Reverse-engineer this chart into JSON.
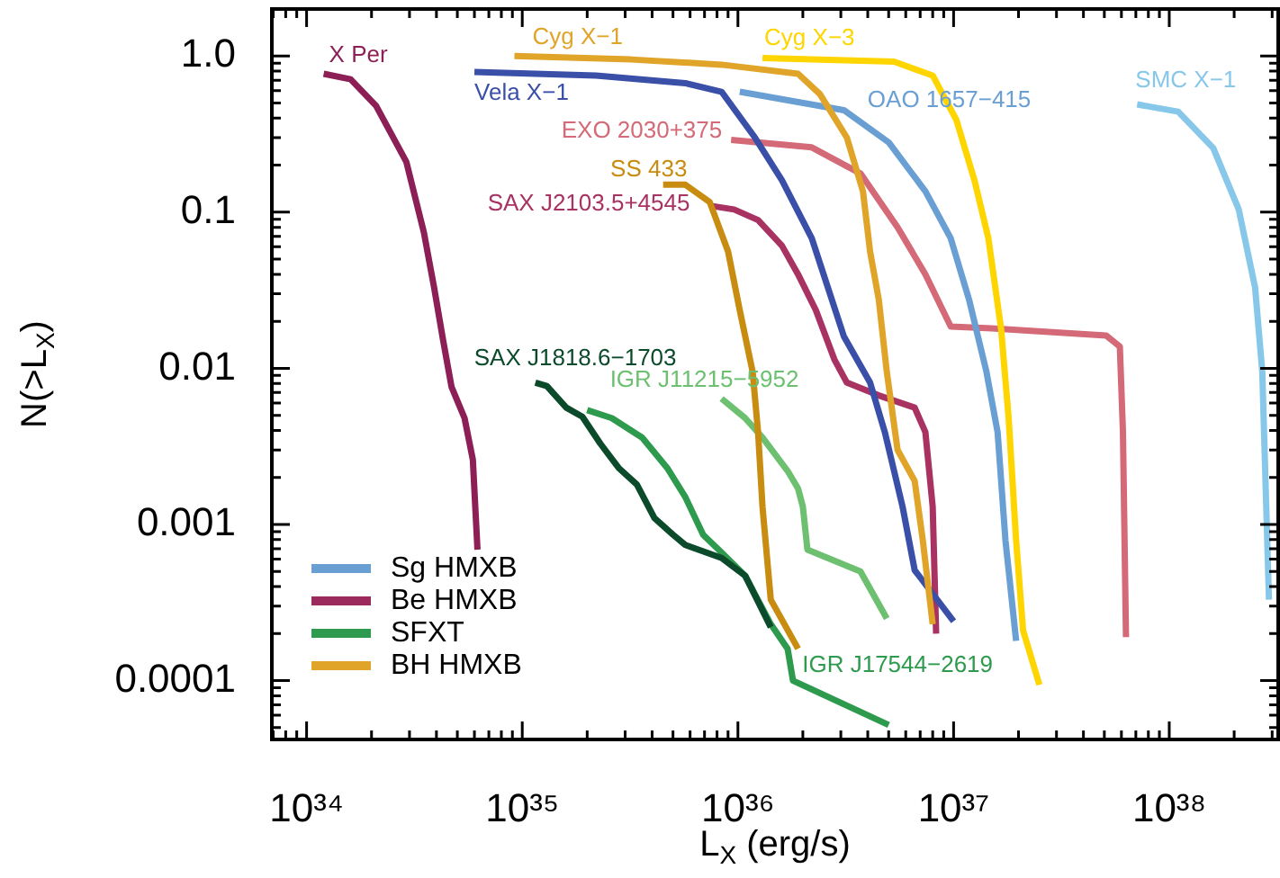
{
  "chart_data": {
    "type": "line",
    "xlabel": "L$_{X}$ (erg/s)",
    "ylabel": "N(>L$_{X}$)",
    "log": "xy",
    "legend": "bottom left",
    "xlim": [
      6.9e+33,
      3.2e+38
    ],
    "ylim": [
      4.2e-05,
      2.0
    ],
    "xticks": [
      {
        "value": 7e+33,
        "label": null
      },
      {
        "value": 8e+33,
        "label": null
      },
      {
        "value": 9e+33,
        "label": null
      },
      {
        "value": 1e+34,
        "label": "10³⁴"
      },
      {
        "value": 2e+34,
        "label": null
      },
      {
        "value": 3e+34,
        "label": null
      },
      {
        "value": 4e+34,
        "label": null
      },
      {
        "value": 5e+34,
        "label": null
      },
      {
        "value": 6e+34,
        "label": null
      },
      {
        "value": 7e+34,
        "label": null
      },
      {
        "value": 8e+34,
        "label": null
      },
      {
        "value": 9e+34,
        "label": null
      },
      {
        "value": 1e+35,
        "label": "10³⁵"
      },
      {
        "value": 2e+35,
        "label": null
      },
      {
        "value": 3e+35,
        "label": null
      },
      {
        "value": 4e+35,
        "label": null
      },
      {
        "value": 5e+35,
        "label": null
      },
      {
        "value": 6e+35,
        "label": null
      },
      {
        "value": 7e+35,
        "label": null
      },
      {
        "value": 8e+35,
        "label": null
      },
      {
        "value": 9e+35,
        "label": null
      },
      {
        "value": 1e+36,
        "label": "10³⁶"
      },
      {
        "value": 2e+36,
        "label": null
      },
      {
        "value": 3e+36,
        "label": null
      },
      {
        "value": 4e+36,
        "label": null
      },
      {
        "value": 5e+36,
        "label": null
      },
      {
        "value": 6e+36,
        "label": null
      },
      {
        "value": 7e+36,
        "label": null
      },
      {
        "value": 8e+36,
        "label": null
      },
      {
        "value": 9e+36,
        "label": null
      },
      {
        "value": 1e+37,
        "label": "10³⁷"
      },
      {
        "value": 2e+37,
        "label": null
      },
      {
        "value": 3e+37,
        "label": null
      },
      {
        "value": 4e+37,
        "label": null
      },
      {
        "value": 5e+37,
        "label": null
      },
      {
        "value": 6e+37,
        "label": null
      },
      {
        "value": 7e+37,
        "label": null
      },
      {
        "value": 8e+37,
        "label": null
      },
      {
        "value": 9e+37,
        "label": null
      },
      {
        "value": 1e+38,
        "label": "10³⁸"
      },
      {
        "value": 2e+38,
        "label": null
      },
      {
        "value": 3e+38,
        "label": null
      }
    ],
    "yticks": [
      {
        "value": 5e-05,
        "label": null
      },
      {
        "value": 6e-05,
        "label": null
      },
      {
        "value": 7e-05,
        "label": null
      },
      {
        "value": 8e-05,
        "label": null
      },
      {
        "value": 9e-05,
        "label": null
      },
      0.0001,
      {
        "value": 0.0002,
        "label": null
      },
      {
        "value": 0.0003,
        "label": null
      },
      {
        "value": 0.0004,
        "label": null
      },
      {
        "value": 0.0005,
        "label": null
      },
      {
        "value": 0.0006,
        "label": null
      },
      {
        "value": 0.0007,
        "label": null
      },
      {
        "value": 0.0008,
        "label": null
      },
      {
        "value": 0.0009,
        "label": null
      },
      0.001,
      {
        "value": 0.002,
        "label": null
      },
      {
        "value": 0.003,
        "label": null
      },
      {
        "value": 0.004,
        "label": null
      },
      {
        "value": 0.005,
        "label": null
      },
      {
        "value": 0.006,
        "label": null
      },
      {
        "value": 0.007,
        "label": null
      },
      {
        "value": 0.008,
        "label": null
      },
      {
        "value": 0.009,
        "label": null
      },
      0.01,
      {
        "value": 0.02,
        "label": null
      },
      {
        "value": 0.03,
        "label": null
      },
      {
        "value": 0.04,
        "label": null
      },
      {
        "value": 0.05,
        "label": null
      },
      {
        "value": 0.06,
        "label": null
      },
      {
        "value": 0.07,
        "label": null
      },
      {
        "value": 0.08,
        "label": null
      },
      {
        "value": 0.09,
        "label": null
      },
      0.1,
      {
        "value": 0.2,
        "label": null
      },
      {
        "value": 0.3,
        "label": null
      },
      {
        "value": 0.4,
        "label": null
      },
      {
        "value": 0.5,
        "label": null
      },
      {
        "value": 0.6,
        "label": null
      },
      {
        "value": 0.7,
        "label": null
      },
      {
        "value": 0.8,
        "label": null
      },
      {
        "value": 0.9,
        "label": null
      },
      {
        "value": 1,
        "label": "1.0"
      },
      {
        "value": 2,
        "label": null
      }
    ],
    "series": [
      {
        "name": "Sg HMXB",
        "color": "#6a9fd4"
      },
      {
        "name": "Be HMXB",
        "color": "#9b2a5d"
      },
      {
        "name": "SFXT",
        "color": "#2e9a4e"
      },
      {
        "name": "BH HMXB",
        "color": "#e0a428"
      },
      {
        "name": "X Per",
        "color": "#8c1f55",
        "x": [
          1.2e+34,
          1.6e+34,
          2.1e+34,
          2.9e+34,
          3.5e+34,
          3.9e+34,
          4.3e+34,
          4.7e+34,
          5.4e+34,
          5.9e+34,
          6.2e+34
        ],
        "values": [
          0.77,
          0.71,
          0.48,
          0.21,
          0.074,
          0.033,
          0.015,
          0.0076,
          0.0048,
          0.0026,
          0.00069
        ]
      },
      {
        "name": "Cyg X−1",
        "color": "#e0a428",
        "x": [
          9.2e+34,
          3.2e+35,
          8.4e+35,
          1.9e+36,
          2.4e+36,
          3.2e+36,
          3.8e+36,
          4.1e+36,
          4.5e+36,
          4.9e+36,
          5.5e+36,
          6.6e+36,
          7.2e+36,
          8e+36
        ],
        "values": [
          1.0,
          0.95,
          0.88,
          0.77,
          0.57,
          0.3,
          0.136,
          0.056,
          0.0275,
          0.0095,
          0.003,
          0.0019,
          0.00079,
          0.00023
        ]
      },
      {
        "name": "Vela X−1",
        "color": "#3a4fa8",
        "x": [
          6e+34,
          2.2e+35,
          5.7e+35,
          8.4e+35,
          1.2e+36,
          1.6e+36,
          2.2e+36,
          3.1e+36,
          4.1e+36,
          4.8e+36,
          5.8e+36,
          6.6e+36,
          1e+37
        ],
        "values": [
          0.79,
          0.75,
          0.67,
          0.59,
          0.3,
          0.16,
          0.068,
          0.016,
          0.0081,
          0.0039,
          0.0013,
          0.00051,
          0.00024
        ]
      },
      {
        "name": "Cyg X−3",
        "color": "#ffd500",
        "x": [
          1.3e+36,
          5.3e+36,
          8e+36,
          1.03e+37,
          1.25e+37,
          1.45e+37,
          1.66e+37,
          1.8e+37,
          1.95e+37,
          2.1e+37,
          2.5e+37
        ],
        "values": [
          0.97,
          0.92,
          0.75,
          0.39,
          0.16,
          0.068,
          0.018,
          0.0048,
          0.00079,
          0.00021,
          9.4e-05
        ]
      },
      {
        "name": "OAO 1657−415",
        "color": "#6a9fd4",
        "x": [
          1.02e+36,
          3.1e+36,
          5e+36,
          7.4e+36,
          9.7e+36,
          1.18e+37,
          1.42e+37,
          1.6e+37,
          1.74e+37,
          1.95e+37
        ],
        "values": [
          0.59,
          0.45,
          0.28,
          0.136,
          0.068,
          0.0275,
          0.0095,
          0.0039,
          0.00079,
          0.00018
        ]
      },
      {
        "name": "EXO 2030+375",
        "color": "#d46a78",
        "x": [
          9.3e+35,
          2.2e+36,
          3.7e+36,
          5.5e+36,
          7.4e+36,
          9.7e+36,
          1.5e+37,
          5.1e+37,
          5.9e+37,
          6.1e+37,
          6.3e+37
        ],
        "values": [
          0.29,
          0.26,
          0.177,
          0.08,
          0.04,
          0.0185,
          0.018,
          0.0162,
          0.0138,
          0.0039,
          0.00019
        ]
      },
      {
        "name": "SS 433",
        "color": "#c88c10",
        "x": [
          4.5e+35,
          5.7e+35,
          7.4e+35,
          9e+35,
          1.02e+36,
          1.17e+36,
          1.24e+36,
          1.3e+36,
          1.42e+36,
          1.9e+36
        ],
        "values": [
          0.15,
          0.15,
          0.116,
          0.056,
          0.0235,
          0.0095,
          0.0039,
          0.0013,
          0.00033,
          0.00016
        ]
      },
      {
        "name": "SAX J2103.5+4545",
        "color": "#a83262",
        "x": [
          7.4e+35,
          9.6e+35,
          1.24e+36,
          1.6e+36,
          1.9e+36,
          2.3e+36,
          2.8e+36,
          3.2e+36,
          4.5e+36,
          6.6e+36,
          7.4e+36,
          8e+36,
          8.3e+36
        ],
        "values": [
          0.11,
          0.104,
          0.089,
          0.061,
          0.04,
          0.0235,
          0.0114,
          0.0081,
          0.0067,
          0.0056,
          0.0039,
          0.0013,
          0.0002
        ]
      },
      {
        "name": "SMC X−1",
        "color": "#87c8ea",
        "x": [
          7.1e+37,
          1.1e+38,
          1.6e+38,
          2.1e+38,
          2.5e+38,
          2.7e+38,
          2.9e+38
        ],
        "values": [
          0.49,
          0.44,
          0.257,
          0.104,
          0.033,
          0.0095,
          0.00033
        ]
      },
      {
        "name": "SAX J1818.6−1703",
        "color": "#0b4a2a",
        "x": [
          1.15e+35,
          1.3e+35,
          1.6e+35,
          1.9e+35,
          2.3e+35,
          2.8e+35,
          3.4e+35,
          4.1e+35,
          5e+35,
          5.7e+35,
          8.4e+35,
          1.08e+36,
          1.42e+36
        ],
        "values": [
          0.0081,
          0.0077,
          0.0056,
          0.0049,
          0.0033,
          0.0023,
          0.0018,
          0.0011,
          0.00086,
          0.00074,
          0.00061,
          0.00047,
          0.00022
        ]
      },
      {
        "name": "IGR J11215−5952",
        "color": "#6cc070",
        "x": [
          8.4e+35,
          1.08e+36,
          1.3e+36,
          1.7e+36,
          1.9e+36,
          2e+36,
          2.1e+36,
          3.7e+36,
          4.9e+36
        ],
        "values": [
          0.0064,
          0.0048,
          0.0036,
          0.0022,
          0.0017,
          0.0013,
          0.00069,
          0.0005,
          0.00025
        ]
      },
      {
        "name": "IGR J17544−2619",
        "color": "#2e9a4e",
        "x": [
          2e+35,
          2.6e+35,
          3.6e+35,
          4.7e+35,
          5.7e+35,
          6.9e+35,
          8.4e+35,
          1.08e+36,
          1.42e+36,
          1.7e+36,
          1.8e+36,
          5e+36
        ],
        "values": [
          0.0054,
          0.0048,
          0.0036,
          0.0023,
          0.0015,
          0.00086,
          0.00066,
          0.00047,
          0.00023,
          0.00016,
          0.0001,
          5.2e-05
        ]
      }
    ]
  }
}
